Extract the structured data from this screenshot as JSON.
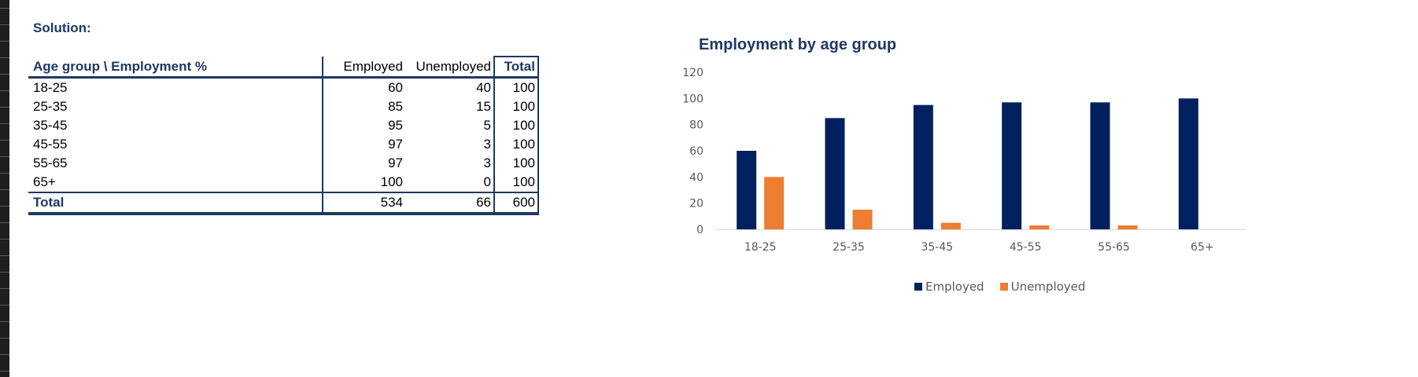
{
  "solution_label": "Solution:",
  "table": {
    "headers": [
      "Age group \\ Employment %",
      "Employed",
      "Unemployed",
      "Total"
    ],
    "rows": [
      [
        "18-25",
        "60",
        "40",
        "100"
      ],
      [
        "25-35",
        "85",
        "15",
        "100"
      ],
      [
        "35-45",
        "95",
        "5",
        "100"
      ],
      [
        "45-55",
        "97",
        "3",
        "100"
      ],
      [
        "55-65",
        "97",
        "3",
        "100"
      ],
      [
        "65+",
        "100",
        "0",
        "100"
      ]
    ],
    "total_row": [
      "Total",
      "534",
      "66",
      "600"
    ]
  },
  "chart_data": {
    "type": "bar",
    "title": "Employment by age group",
    "categories": [
      "18-25",
      "25-35",
      "35-45",
      "45-55",
      "55-65",
      "65+"
    ],
    "series": [
      {
        "name": "Employed",
        "values": [
          60,
          85,
          95,
          97,
          97,
          100
        ],
        "color": "#002060"
      },
      {
        "name": "Unemployed",
        "values": [
          40,
          15,
          5,
          3,
          3,
          0
        ],
        "color": "#ED7D31"
      }
    ],
    "yticks": [
      0,
      20,
      40,
      60,
      80,
      100,
      120
    ],
    "ylim": [
      0,
      120
    ],
    "legend_position": "bottom",
    "grid": false
  }
}
